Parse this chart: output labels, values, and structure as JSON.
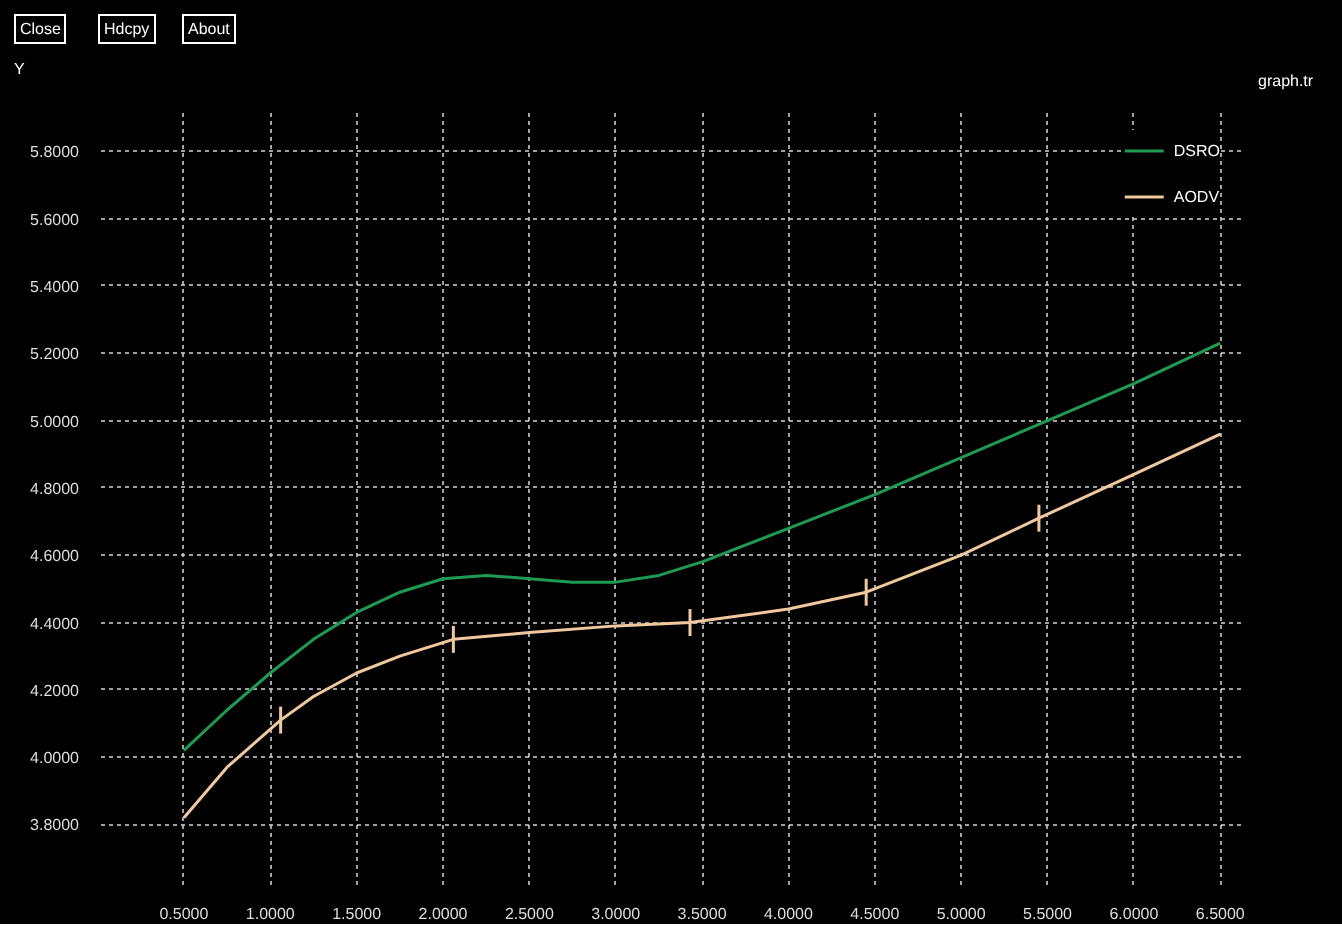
{
  "chart_data": {
    "type": "line",
    "ylabel": "Y",
    "annotations": [
      "Close",
      "Hdcpy",
      "About",
      "graph.tr"
    ],
    "xlim": [
      0.02,
      6.62
    ],
    "ylim": [
      3.62,
      5.92
    ],
    "xticks": [
      {
        "value": 0.5,
        "label": "0.5000"
      },
      {
        "value": 1.0,
        "label": "1.0000"
      },
      {
        "value": 1.5,
        "label": "1.5000"
      },
      {
        "value": 2.0,
        "label": "2.0000"
      },
      {
        "value": 2.5,
        "label": "2.5000"
      },
      {
        "value": 3.0,
        "label": "3.0000"
      },
      {
        "value": 3.5,
        "label": "3.5000"
      },
      {
        "value": 4.0,
        "label": "4.0000"
      },
      {
        "value": 4.5,
        "label": "4.5000"
      },
      {
        "value": 5.0,
        "label": "5.0000"
      },
      {
        "value": 5.5,
        "label": "5.5000"
      },
      {
        "value": 6.0,
        "label": "6.0000"
      },
      {
        "value": 6.5,
        "label": "6.5000"
      }
    ],
    "yticks": [
      {
        "value": 3.8,
        "label": "3.8000"
      },
      {
        "value": 4.0,
        "label": "4.0000"
      },
      {
        "value": 4.2,
        "label": "4.2000"
      },
      {
        "value": 4.4,
        "label": "4.4000"
      },
      {
        "value": 4.6,
        "label": "4.6000"
      },
      {
        "value": 4.8,
        "label": "4.8000"
      },
      {
        "value": 5.0,
        "label": "5.0000"
      },
      {
        "value": 5.2,
        "label": "5.2000"
      },
      {
        "value": 5.4,
        "label": "5.4000"
      },
      {
        "value": 5.6,
        "label": "5.6000"
      },
      {
        "value": 5.8,
        "label": "5.8000"
      }
    ],
    "grid": true,
    "legend": "top right",
    "line_style": "solid",
    "series": [
      {
        "name": "DSRO",
        "color": "#1f9a55",
        "x": [
          0.5,
          0.75,
          1.0,
          1.25,
          1.5,
          1.75,
          2.0,
          2.25,
          2.5,
          2.75,
          3.0,
          3.25,
          3.5,
          3.75,
          4.0,
          4.5,
          5.0,
          5.5,
          6.0,
          6.5
        ],
        "values": [
          4.02,
          4.14,
          4.25,
          4.35,
          4.43,
          4.49,
          4.53,
          4.54,
          4.53,
          4.52,
          4.52,
          4.54,
          4.58,
          4.63,
          4.68,
          4.78,
          4.89,
          5.0,
          5.11,
          5.23
        ]
      },
      {
        "name": "AODV",
        "color": "#f0c8a0",
        "x": [
          0.5,
          0.75,
          1.06,
          1.25,
          1.5,
          1.75,
          2.06,
          2.5,
          3.0,
          3.43,
          4.0,
          4.45,
          5.0,
          5.45,
          6.0,
          6.5
        ],
        "values": [
          3.82,
          3.97,
          4.11,
          4.18,
          4.25,
          4.3,
          4.35,
          4.37,
          4.39,
          4.4,
          4.44,
          4.49,
          4.6,
          4.71,
          4.84,
          4.96
        ],
        "errors": [
          null,
          null,
          0.04,
          null,
          null,
          null,
          0.04,
          null,
          null,
          0.04,
          null,
          0.04,
          null,
          0.04,
          null,
          null
        ]
      }
    ]
  }
}
